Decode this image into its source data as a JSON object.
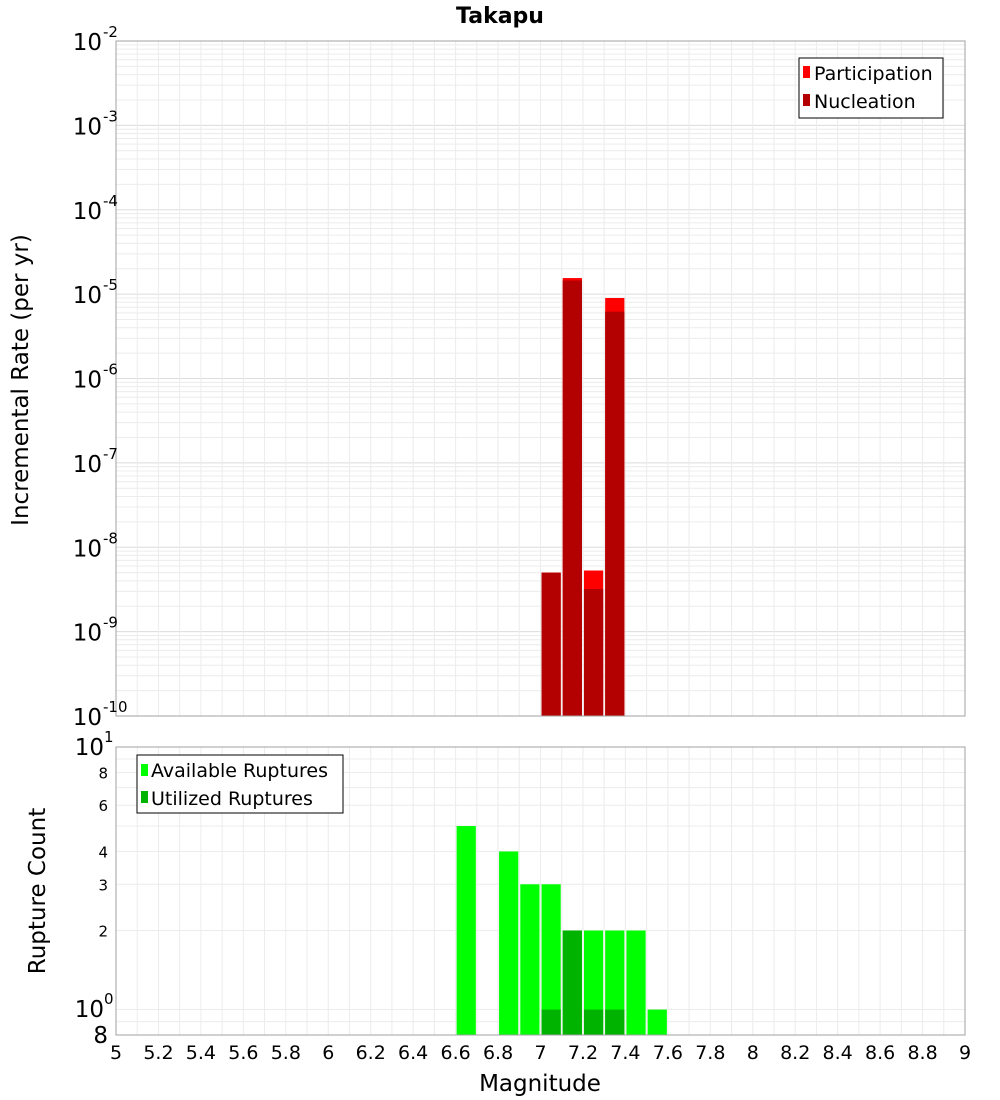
{
  "chart_data": [
    {
      "type": "bar",
      "title": "Takapu",
      "xlabel": "",
      "ylabel": "Incremental Rate (per yr)",
      "yscale": "log",
      "ylim": [
        1e-10,
        0.01
      ],
      "xlim": [
        5,
        9
      ],
      "y_tick_mantissa": "10",
      "y_tick_exponents": [
        "-2",
        "-3",
        "-4",
        "-5",
        "-6",
        "-7",
        "-8",
        "-9",
        "-10"
      ],
      "legend": {
        "position": "top-right",
        "entries": [
          "Participation",
          "Nucleation"
        ]
      },
      "colors": {
        "participation": "#ff0000",
        "nucleation": "#b30000"
      },
      "x": [
        7.05,
        7.15,
        7.25,
        7.35
      ],
      "series": [
        {
          "name": "Participation",
          "values": [
            5e-09,
            1.55e-05,
            5.3e-09,
            9e-06
          ]
        },
        {
          "name": "Nucleation",
          "values": [
            5e-09,
            1.45e-05,
            3.2e-09,
            6.2e-06
          ]
        }
      ]
    },
    {
      "type": "bar",
      "xlabel": "Magnitude",
      "ylabel": "Rupture Count",
      "yscale": "log",
      "ylim": [
        0.8,
        10
      ],
      "xlim": [
        5,
        9
      ],
      "x_ticks": [
        "5",
        "5.2",
        "5.4",
        "5.6",
        "5.8",
        "6",
        "6.2",
        "6.4",
        "6.6",
        "6.8",
        "7",
        "7.2",
        "7.4",
        "7.6",
        "7.8",
        "8",
        "8.2",
        "8.4",
        "8.6",
        "8.8",
        "9"
      ],
      "y_ticks_minor": [
        "8",
        "6",
        "4",
        "3",
        "2"
      ],
      "y_tick_top": "10",
      "y_tick_top_exp": "1",
      "y_tick_one": "10",
      "y_tick_one_exp": "0",
      "y_tick_bottom": "8",
      "legend": {
        "position": "top-left",
        "entries": [
          "Available Ruptures",
          "Utilized Ruptures"
        ]
      },
      "colors": {
        "available": "#00ff00",
        "utilized": "#00b300"
      },
      "x": [
        6.65,
        6.85,
        6.95,
        7.05,
        7.15,
        7.25,
        7.35,
        7.45,
        7.55
      ],
      "series": [
        {
          "name": "Available Ruptures",
          "values": [
            5,
            4,
            3,
            3,
            2,
            2,
            2,
            2,
            1
          ]
        },
        {
          "name": "Utilized Ruptures",
          "values": [
            0,
            0,
            0,
            1,
            2,
            1,
            1,
            0,
            0
          ]
        }
      ]
    }
  ]
}
